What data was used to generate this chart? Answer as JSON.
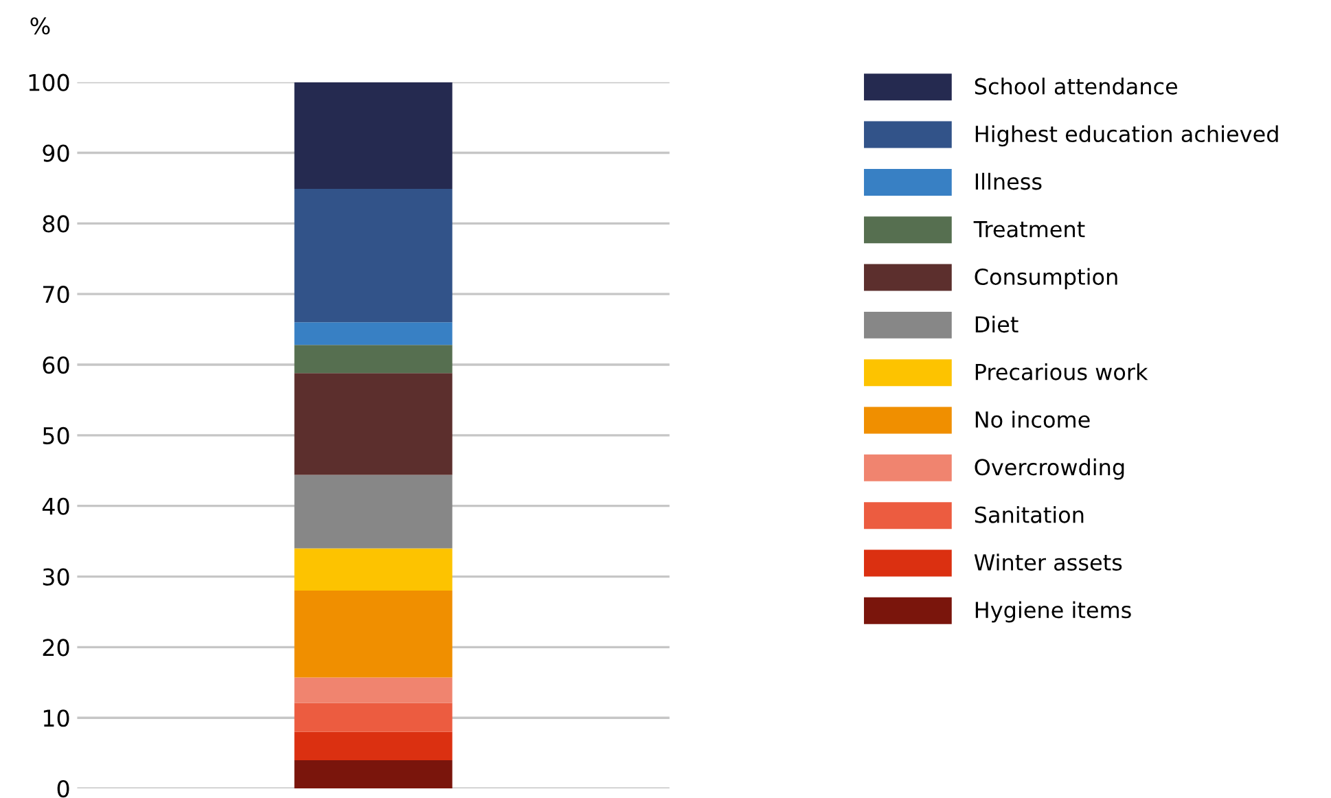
{
  "chart_data": {
    "type": "bar",
    "stacked": true,
    "ylabel": "%",
    "categories": [
      null
    ],
    "ylim": [
      0,
      100
    ],
    "yticks": [
      0,
      10,
      20,
      30,
      40,
      50,
      60,
      70,
      80,
      90,
      100
    ],
    "grid": "y",
    "legend": "right",
    "series": [
      {
        "name": "Hygiene items",
        "color": "#7a150c",
        "values": [
          4
        ]
      },
      {
        "name": "Winter assets",
        "color": "#db3011",
        "values": [
          4
        ]
      },
      {
        "name": "Sanitation",
        "color": "#ec5c40",
        "values": [
          4.1
        ]
      },
      {
        "name": "Overcrowding",
        "color": "#f0846f",
        "values": [
          3.6
        ]
      },
      {
        "name": "No income",
        "color": "#f08f00",
        "values": [
          12.3
        ]
      },
      {
        "name": "Precarious work",
        "color": "#fdc300",
        "values": [
          6
        ]
      },
      {
        "name": "Diet",
        "color": "#878787",
        "values": [
          10.4
        ]
      },
      {
        "name": "Consumption",
        "color": "#5c2f2d",
        "values": [
          14.4
        ]
      },
      {
        "name": "Treatment",
        "color": "#566f50",
        "values": [
          4
        ]
      },
      {
        "name": "Illness",
        "color": "#3880c4",
        "values": [
          3.2
        ]
      },
      {
        "name": "Highest education achieved",
        "color": "#325389",
        "values": [
          18.9
        ]
      },
      {
        "name": "School attendance",
        "color": "#252a50",
        "values": [
          15.1
        ]
      }
    ]
  }
}
